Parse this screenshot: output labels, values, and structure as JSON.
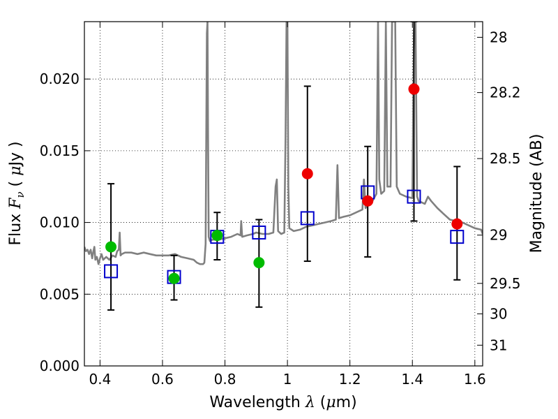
{
  "chart_data": {
    "type": "scatter",
    "xlabel_prefix": "Wavelength  ",
    "xlabel_symbol": "λ",
    "xlabel_unit_open": " (",
    "xlabel_unit_symbol": "μ",
    "xlabel_unit_rest": "m)",
    "ylabel_prefix": "Flux  ",
    "ylabel_symbol": "F",
    "ylabel_sub": "ν",
    "ylabel_unit_open": "  ( ",
    "ylabel_unit_symbol": "μ",
    "ylabel_unit_rest": "Jy )",
    "y2label": "Magnitude (AB)",
    "xlim": [
      0.35,
      1.625
    ],
    "ylim": [
      0.0,
      0.024
    ],
    "grid": true,
    "xticks": [
      {
        "v": 0.4,
        "label": "0.4"
      },
      {
        "v": 0.6,
        "label": "0.6"
      },
      {
        "v": 0.8,
        "label": "0.8"
      },
      {
        "v": 1.0,
        "label": "1"
      },
      {
        "v": 1.2,
        "label": "1.2"
      },
      {
        "v": 1.4,
        "label": "1.4"
      },
      {
        "v": 1.6,
        "label": "1.6"
      }
    ],
    "yticks": [
      {
        "v": 0.0,
        "label": "0.000"
      },
      {
        "v": 0.005,
        "label": "0.005"
      },
      {
        "v": 0.01,
        "label": "0.010"
      },
      {
        "v": 0.015,
        "label": "0.015"
      },
      {
        "v": 0.02,
        "label": "0.020"
      }
    ],
    "y2ticks": [
      {
        "v": 28,
        "label": "28"
      },
      {
        "v": 28.2,
        "label": "28.2"
      },
      {
        "v": 28.5,
        "label": "28.5"
      },
      {
        "v": 29,
        "label": "29"
      },
      {
        "v": 29.5,
        "label": "29.5"
      },
      {
        "v": 30,
        "label": "30"
      },
      {
        "v": 31,
        "label": "31"
      }
    ],
    "spectrum": {
      "color": "#808080",
      "points": [
        [
          0.35,
          0.0083
        ],
        [
          0.355,
          0.008
        ],
        [
          0.36,
          0.0081
        ],
        [
          0.365,
          0.0078
        ],
        [
          0.37,
          0.0081
        ],
        [
          0.375,
          0.0075
        ],
        [
          0.378,
          0.0079
        ],
        [
          0.382,
          0.0083
        ],
        [
          0.385,
          0.0074
        ],
        [
          0.39,
          0.0076
        ],
        [
          0.395,
          0.0071
        ],
        [
          0.4,
          0.0075
        ],
        [
          0.405,
          0.0078
        ],
        [
          0.41,
          0.0074
        ],
        [
          0.42,
          0.0076
        ],
        [
          0.43,
          0.0074
        ],
        [
          0.44,
          0.0077
        ],
        [
          0.45,
          0.0076
        ],
        [
          0.455,
          0.008
        ],
        [
          0.46,
          0.0081
        ],
        [
          0.463,
          0.0093
        ],
        [
          0.466,
          0.0077
        ],
        [
          0.47,
          0.0078
        ],
        [
          0.48,
          0.0079
        ],
        [
          0.5,
          0.0079
        ],
        [
          0.52,
          0.0078
        ],
        [
          0.54,
          0.0079
        ],
        [
          0.56,
          0.0078
        ],
        [
          0.58,
          0.0077
        ],
        [
          0.6,
          0.0077
        ],
        [
          0.62,
          0.0077
        ],
        [
          0.64,
          0.0078
        ],
        [
          0.66,
          0.0076
        ],
        [
          0.68,
          0.0075
        ],
        [
          0.7,
          0.0074
        ],
        [
          0.71,
          0.0072
        ],
        [
          0.72,
          0.0071
        ],
        [
          0.73,
          0.0071
        ],
        [
          0.734,
          0.0072
        ],
        [
          0.738,
          0.0085
        ],
        [
          0.742,
          0.0232
        ],
        [
          0.744,
          0.024
        ],
        [
          0.746,
          0.016
        ],
        [
          0.748,
          0.009
        ],
        [
          0.752,
          0.0087
        ],
        [
          0.76,
          0.0088
        ],
        [
          0.78,
          0.0088
        ],
        [
          0.8,
          0.0089
        ],
        [
          0.82,
          0.009
        ],
        [
          0.84,
          0.0092
        ],
        [
          0.85,
          0.0091
        ],
        [
          0.852,
          0.0101
        ],
        [
          0.855,
          0.009
        ],
        [
          0.87,
          0.0091
        ],
        [
          0.89,
          0.0092
        ],
        [
          0.9,
          0.0093
        ],
        [
          0.92,
          0.0092
        ],
        [
          0.94,
          0.0092
        ],
        [
          0.955,
          0.0093
        ],
        [
          0.962,
          0.0125
        ],
        [
          0.966,
          0.013
        ],
        [
          0.97,
          0.0094
        ],
        [
          0.98,
          0.0092
        ],
        [
          0.99,
          0.0093
        ],
        [
          0.994,
          0.016
        ],
        [
          0.997,
          0.024
        ],
        [
          1.0,
          0.024
        ],
        [
          1.003,
          0.0125
        ],
        [
          1.006,
          0.0096
        ],
        [
          1.02,
          0.0094
        ],
        [
          1.04,
          0.0095
        ],
        [
          1.06,
          0.0097
        ],
        [
          1.08,
          0.0098
        ],
        [
          1.1,
          0.0099
        ],
        [
          1.12,
          0.01
        ],
        [
          1.14,
          0.0101
        ],
        [
          1.155,
          0.0102
        ],
        [
          1.16,
          0.014
        ],
        [
          1.165,
          0.0103
        ],
        [
          1.18,
          0.0104
        ],
        [
          1.2,
          0.0105
        ],
        [
          1.22,
          0.0107
        ],
        [
          1.24,
          0.0109
        ],
        [
          1.245,
          0.013
        ],
        [
          1.25,
          0.011
        ],
        [
          1.26,
          0.0113
        ],
        [
          1.27,
          0.0114
        ],
        [
          1.285,
          0.012
        ],
        [
          1.29,
          0.024
        ],
        [
          1.294,
          0.013
        ],
        [
          1.3,
          0.012
        ],
        [
          1.31,
          0.0122
        ],
        [
          1.315,
          0.024
        ],
        [
          1.32,
          0.0125
        ],
        [
          1.33,
          0.0125
        ],
        [
          1.335,
          0.024
        ],
        [
          1.345,
          0.024
        ],
        [
          1.35,
          0.0125
        ],
        [
          1.36,
          0.012
        ],
        [
          1.38,
          0.0118
        ],
        [
          1.4,
          0.0117
        ],
        [
          1.405,
          0.0235
        ],
        [
          1.41,
          0.024
        ],
        [
          1.415,
          0.0118
        ],
        [
          1.42,
          0.0115
        ],
        [
          1.44,
          0.0113
        ],
        [
          1.45,
          0.0118
        ],
        [
          1.46,
          0.0115
        ],
        [
          1.48,
          0.011
        ],
        [
          1.5,
          0.0106
        ],
        [
          1.52,
          0.0102
        ],
        [
          1.54,
          0.0101
        ],
        [
          1.56,
          0.01
        ],
        [
          1.58,
          0.0098
        ],
        [
          1.6,
          0.0096
        ],
        [
          1.62,
          0.0095
        ],
        [
          1.625,
          0.0092
        ]
      ]
    },
    "errorbars": [
      {
        "x": 0.435,
        "low": 0.0039,
        "high": 0.0127
      },
      {
        "x": 0.637,
        "low": 0.0046,
        "high": 0.0077
      },
      {
        "x": 0.775,
        "low": 0.0074,
        "high": 0.0107
      },
      {
        "x": 0.909,
        "low": 0.0041,
        "high": 0.0102
      },
      {
        "x": 1.064,
        "low": 0.0073,
        "high": 0.0195
      },
      {
        "x": 1.257,
        "low": 0.0076,
        "high": 0.0153
      },
      {
        "x": 1.405,
        "low": 0.0101,
        "high": 0.024
      },
      {
        "x": 1.543,
        "low": 0.006,
        "high": 0.0139
      }
    ],
    "model_points": {
      "color": "#0000cc",
      "points": [
        [
          0.435,
          0.0066
        ],
        [
          0.637,
          0.0062
        ],
        [
          0.775,
          0.009
        ],
        [
          0.909,
          0.0093
        ],
        [
          1.064,
          0.0103
        ],
        [
          1.257,
          0.0121
        ],
        [
          1.405,
          0.0118
        ],
        [
          1.543,
          0.009
        ]
      ]
    },
    "obs_green": {
      "color": "#00bb00",
      "points": [
        [
          0.435,
          0.0083
        ],
        [
          0.637,
          0.0061
        ],
        [
          0.775,
          0.0091
        ],
        [
          0.909,
          0.0072
        ]
      ]
    },
    "obs_red": {
      "color": "#ee0000",
      "points": [
        [
          1.064,
          0.0134
        ],
        [
          1.257,
          0.0115
        ],
        [
          1.405,
          0.0193
        ],
        [
          1.543,
          0.0099
        ]
      ]
    }
  }
}
